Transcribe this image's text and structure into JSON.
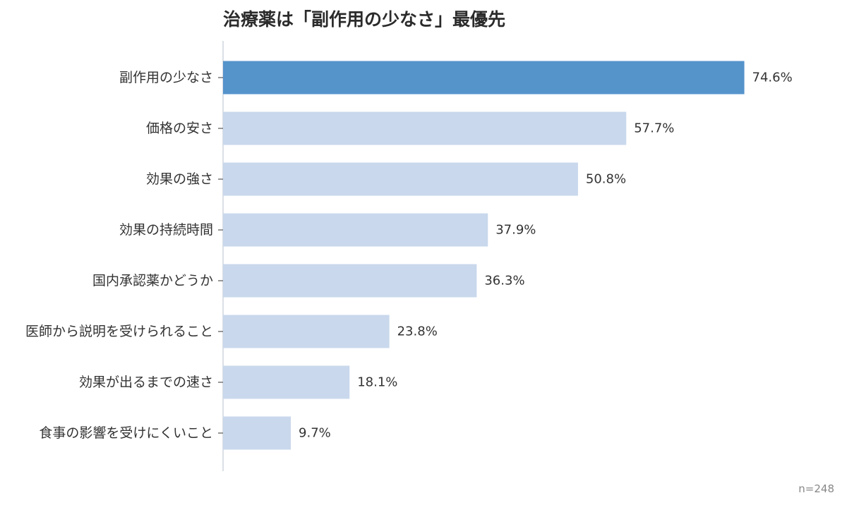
{
  "chart_data": {
    "type": "bar",
    "orientation": "horizontal",
    "title": "治療薬は「副作用の少なさ」最優先",
    "categories": [
      "副作用の少なさ",
      "価格の安さ",
      "効果の強さ",
      "効果の持続時間",
      "国内承認薬かどうか",
      "医師から説明を受けられること",
      "効果が出るまでの速さ",
      "食事の影響を受けにくいこと"
    ],
    "values": [
      74.6,
      57.7,
      50.8,
      37.9,
      36.3,
      23.8,
      18.1,
      9.7
    ],
    "value_labels": [
      "74.6%",
      "57.7%",
      "50.8%",
      "37.9%",
      "36.3%",
      "23.8%",
      "18.1%",
      "9.7%"
    ],
    "unit": "%",
    "xlim": [
      0,
      80
    ],
    "highlight_index": 0,
    "colors": {
      "highlight": "#5593cb",
      "default": "#c9d8ec",
      "axis": "#cfd5dd",
      "text": "#333333"
    },
    "grid": false,
    "legend": "none",
    "sample_note": "n=248"
  }
}
